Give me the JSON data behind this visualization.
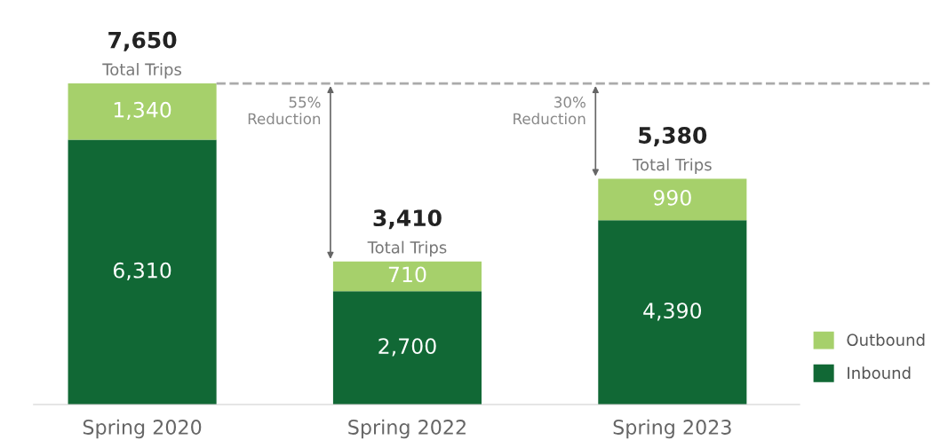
{
  "chart_data": {
    "type": "bar",
    "stacked": true,
    "categories": [
      "Spring 2020",
      "Spring 2022",
      "Spring 2023"
    ],
    "series": [
      {
        "name": "Inbound",
        "color": "#116835",
        "values": [
          6310,
          2700,
          4390
        ],
        "value_labels": [
          "6,310",
          "2,700",
          "4,390"
        ]
      },
      {
        "name": "Outbound",
        "color": "#a6d06b",
        "values": [
          1340,
          710,
          990
        ],
        "value_labels": [
          "1,340",
          "710",
          "990"
        ]
      }
    ],
    "totals": [
      "7,650",
      "3,410",
      "5,380"
    ],
    "annotations": [
      {
        "text": "Total Trips",
        "x": "Spring 2020",
        "y": 7650
      },
      {
        "text": "Total Trips",
        "x": "Spring 2022",
        "y": 3410
      },
      {
        "text": "Total Trips",
        "x": "Spring 2023",
        "y": 5380
      },
      "55%\nReduction",
      "30%\nReduction"
    ],
    "ref_lines": [
      {
        "axis": "y",
        "value": 7650,
        "color": "#aaaaaa",
        "line_style": "dashed"
      }
    ],
    "legend": "bottom right",
    "grid": false
  }
}
